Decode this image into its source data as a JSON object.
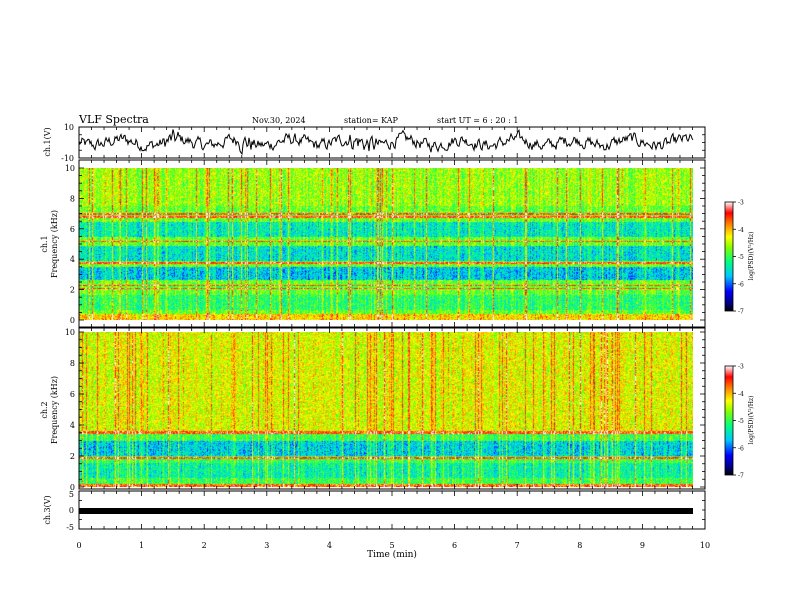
{
  "header": {
    "title": "VLF Spectra",
    "date": "Nov.30, 2024",
    "station": "station= KAP",
    "start": "start  UT  =   6  : 20 : 1"
  },
  "chart_data": [
    {
      "id": "ch1-waveform",
      "type": "line",
      "ylabel": "ch.1(V)",
      "ylim": [
        -10,
        10
      ],
      "yticks": [
        "10",
        "-10"
      ],
      "xlim": [
        0,
        10
      ],
      "note_values": "digitized waveform amplitude is generated procedurally; only axis ranges are read from image"
    },
    {
      "id": "ch1-spectrogram",
      "type": "heatmap",
      "ylabel": "ch.1\nFrequency (kHz)",
      "ylim": [
        0,
        10
      ],
      "yticks": [
        "0",
        "2",
        "4",
        "6",
        "8",
        "10"
      ],
      "xlim": [
        0,
        10
      ],
      "colorbar": {
        "label": "log(PSD)(V²/Hz)",
        "range": [
          -7,
          -3
        ],
        "ticks": [
          "-3",
          "-4",
          "-5",
          "-6",
          "-7"
        ]
      }
    },
    {
      "id": "ch2-spectrogram",
      "type": "heatmap",
      "ylabel": "ch.2\nFrequency (kHz)",
      "ylim": [
        0,
        10
      ],
      "yticks": [
        "0",
        "2",
        "4",
        "6",
        "8",
        "10"
      ],
      "xlim": [
        0,
        10
      ],
      "colorbar": {
        "label": "log(PSD)(V²/Hz)",
        "range": [
          -7,
          -3
        ],
        "ticks": [
          "-3",
          "-4",
          "-5",
          "-6",
          "-7"
        ]
      }
    },
    {
      "id": "ch3-signal",
      "type": "line",
      "ylabel": "ch.3(V)",
      "ylim": [
        -5,
        5
      ],
      "yticks": [
        "5",
        "0",
        "-5"
      ],
      "xlim": [
        0,
        10
      ],
      "xlabel": "Time  (min)",
      "xticks": [
        "0",
        "1",
        "2",
        "3",
        "4",
        "5",
        "6",
        "7",
        "8",
        "9",
        "10"
      ]
    }
  ],
  "colors": {
    "axis": "#000000",
    "waveform": "#000000",
    "colormap": [
      "#000000",
      "#0000ff",
      "#00c8ff",
      "#00ff80",
      "#ffff00",
      "#ff8000",
      "#ff0000",
      "#ffffff"
    ]
  }
}
